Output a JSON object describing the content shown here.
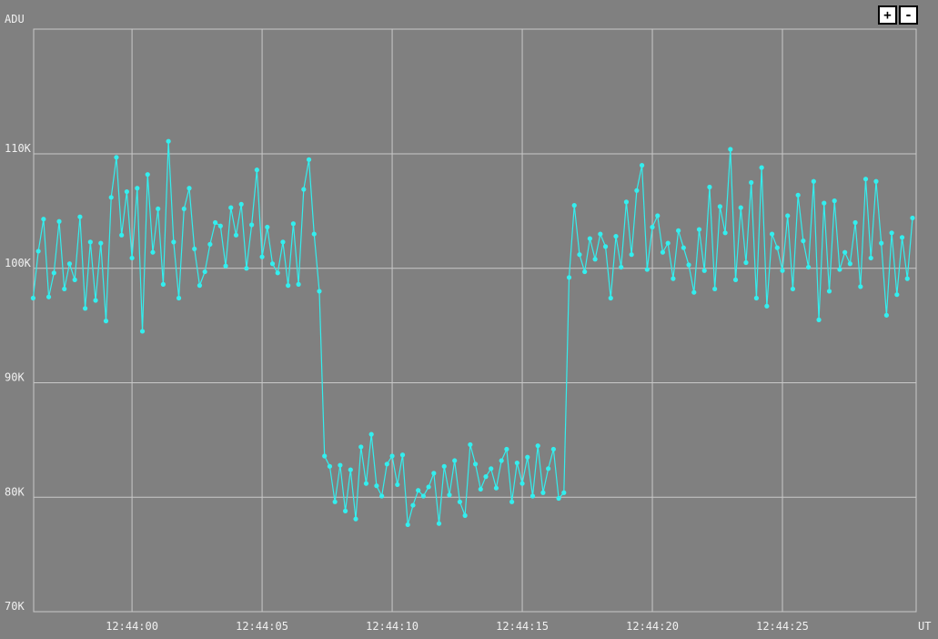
{
  "chart_data": {
    "type": "line",
    "y_label": "ADU",
    "x_label": "UT",
    "zoom_buttons": [
      "+",
      "-"
    ],
    "color": "#33eeee",
    "grid": true,
    "x": [
      -3.8,
      -3.6,
      -3.4,
      -3.2,
      -3,
      -2.8,
      -2.6,
      -2.4,
      -2.2,
      -2,
      -1.8,
      -1.6,
      -1.4,
      -1.2,
      -1,
      -0.8,
      -0.6,
      -0.4,
      -0.2,
      0,
      0.2,
      0.4,
      0.6,
      0.8,
      1,
      1.2,
      1.4,
      1.6,
      1.8,
      2,
      2.2,
      2.4,
      2.6,
      2.8,
      3,
      3.2,
      3.4,
      3.6,
      3.8,
      4,
      4.2,
      4.4,
      4.6,
      4.8,
      5,
      5.2,
      5.4,
      5.6,
      5.8,
      6,
      6.2,
      6.4,
      6.6,
      6.8,
      7,
      7.2,
      7.4,
      7.6,
      7.8,
      8,
      8.2,
      8.4,
      8.6,
      8.8,
      9,
      9.2,
      9.4,
      9.6,
      9.8,
      10,
      10.2,
      10.4,
      10.6,
      10.8,
      11,
      11.2,
      11.4,
      11.6,
      11.8,
      12,
      12.2,
      12.4,
      12.6,
      12.8,
      13,
      13.2,
      13.4,
      13.6,
      13.8,
      14,
      14.2,
      14.4,
      14.6,
      14.8,
      15,
      15.2,
      15.4,
      15.6,
      15.8,
      16,
      16.2,
      16.4,
      16.6,
      16.8,
      17,
      17.2,
      17.4,
      17.6,
      17.8,
      18,
      18.2,
      18.4,
      18.6,
      18.8,
      19,
      19.2,
      19.4,
      19.6,
      19.8,
      20,
      20.2,
      20.4,
      20.6,
      20.8,
      21,
      21.2,
      21.4,
      21.6,
      21.8,
      22,
      22.2,
      22.4,
      22.6,
      22.8,
      23,
      23.2,
      23.4,
      23.6,
      23.8,
      24,
      24.2,
      24.4,
      24.6,
      24.8,
      25,
      25.2,
      25.4,
      25.6,
      25.8,
      26,
      26.2,
      26.4,
      26.6,
      26.8,
      27,
      27.2,
      27.4,
      27.6,
      27.8,
      28,
      28.2,
      28.4,
      28.6,
      28.8,
      29,
      29.2,
      29.4,
      29.6,
      29.8,
      30
    ],
    "values": [
      97400,
      101500,
      104300,
      97500,
      99600,
      104100,
      98200,
      100400,
      99000,
      104500,
      96500,
      102300,
      97200,
      102200,
      95400,
      106200,
      109700,
      102900,
      106700,
      100900,
      107000,
      94500,
      108200,
      101400,
      105200,
      98600,
      111100,
      102300,
      97400,
      105200,
      107000,
      101700,
      98500,
      99700,
      102100,
      104000,
      103700,
      100200,
      105300,
      102900,
      105600,
      100000,
      103800,
      108600,
      101000,
      103600,
      100400,
      99600,
      102300,
      98500,
      103900,
      98600,
      106900,
      109500,
      103000,
      98000,
      83600,
      82700,
      79600,
      82800,
      78800,
      82400,
      78100,
      84400,
      81200,
      85500,
      81000,
      80100,
      82900,
      83600,
      81100,
      83700,
      77600,
      79300,
      80600,
      80100,
      80900,
      82100,
      77700,
      82700,
      80200,
      83200,
      79600,
      78400,
      84600,
      82900,
      80700,
      81800,
      82500,
      80800,
      83200,
      84200,
      79600,
      83000,
      81200,
      83500,
      80100,
      84500,
      80400,
      82500,
      84200,
      79900,
      80400,
      99200,
      105500,
      101200,
      99700,
      102600,
      100800,
      103000,
      101900,
      97400,
      102800,
      100100,
      105800,
      101200,
      106800,
      109000,
      99900,
      103600,
      104600,
      101400,
      102200,
      99100,
      103300,
      101800,
      100300,
      97900,
      103400,
      99800,
      107100,
      98200,
      105400,
      103100,
      110400,
      99000,
      105300,
      100500,
      107500,
      97400,
      108800,
      96700,
      103000,
      101800,
      99800,
      104600,
      98200,
      106400,
      102400,
      100100,
      107600,
      95500,
      105700,
      98000,
      105900,
      99900,
      101400,
      100400,
      104000,
      98400,
      107800,
      100900,
      107600,
      102200,
      95900,
      103100,
      97700,
      102700,
      99100,
      104400
    ],
    "xlim": [
      -3.78,
      30.14
    ],
    "xticks": [
      {
        "value": 0,
        "label": "12:44:00"
      },
      {
        "value": 5,
        "label": "12:44:05"
      },
      {
        "value": 10,
        "label": "12:44:10"
      },
      {
        "value": 15,
        "label": "12:44:15"
      },
      {
        "value": 20,
        "label": "12:44:20"
      },
      {
        "value": 25,
        "label": "12:44:25"
      }
    ],
    "ylim": [
      70000,
      120900
    ],
    "yticks": [
      {
        "value": 70000,
        "label": "70K"
      },
      {
        "value": 80000,
        "label": "80K"
      },
      {
        "value": 90000,
        "label": "90K"
      },
      {
        "value": 100000,
        "label": "100K"
      },
      {
        "value": 110000,
        "label": "110K"
      }
    ]
  }
}
